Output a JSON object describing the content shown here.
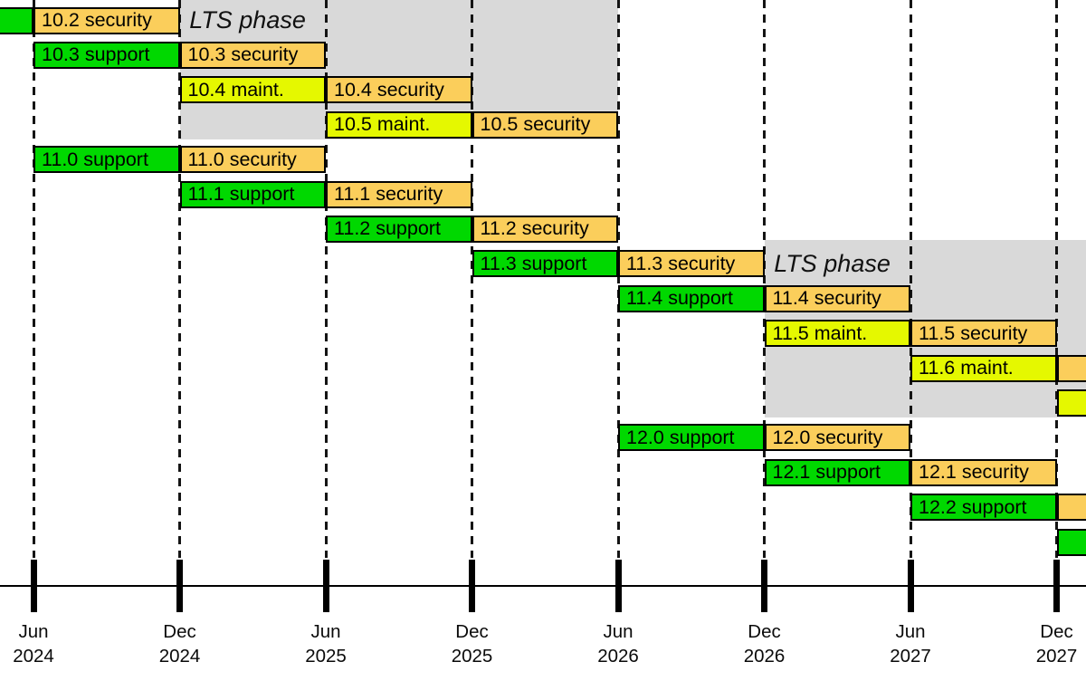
{
  "chart_data": {
    "type": "gantt",
    "title": "",
    "description": "Software release lifecycle timeline showing support, maintenance and security phases per minor version, with shaded LTS phase regions",
    "grid": "dashed vertical lines at each half-year",
    "legend_position": "none visible",
    "time_axis": {
      "unit": "months after Jun 2024",
      "range": [
        0,
        42
      ],
      "ticks": [
        {
          "t": 0,
          "month": "Jun",
          "year": "2024"
        },
        {
          "t": 6,
          "month": "Dec",
          "year": "2024"
        },
        {
          "t": 12,
          "month": "Jun",
          "year": "2025"
        },
        {
          "t": 18,
          "month": "Dec",
          "year": "2025"
        },
        {
          "t": 24,
          "month": "Jun",
          "year": "2026"
        },
        {
          "t": 30,
          "month": "Dec",
          "year": "2026"
        },
        {
          "t": 36,
          "month": "Jun",
          "year": "2027"
        },
        {
          "t": 42,
          "month": "Dec",
          "year": "2027"
        }
      ]
    },
    "colors": {
      "support": "#00d800",
      "maintenance": "#e5f800",
      "security": "#fbce5b",
      "lts_background": "#d9d9d9",
      "bar_border": "#000000",
      "text": "#000000"
    },
    "lts_regions": [
      {
        "label": "LTS phase",
        "t0": 6,
        "t1": 24,
        "row_first": 1,
        "row_last": 4,
        "label_t": 6.4,
        "label_row": 1
      },
      {
        "label": "LTS phase",
        "t0": 30,
        "t1": 44.6,
        "row_first": 8,
        "row_last": 12,
        "label_t": 30.4,
        "label_row": 8
      }
    ],
    "bars": [
      {
        "row": 1,
        "t0": -2,
        "t1": 0,
        "phase": "support",
        "label": ""
      },
      {
        "row": 1,
        "t0": 0,
        "t1": 6,
        "phase": "security",
        "label": "10.2 security"
      },
      {
        "row": 2,
        "t0": 0,
        "t1": 6,
        "phase": "support",
        "label": "10.3 support"
      },
      {
        "row": 2,
        "t0": 6,
        "t1": 12,
        "phase": "security",
        "label": "10.3 security"
      },
      {
        "row": 3,
        "t0": 6,
        "t1": 12,
        "phase": "maintenance",
        "label": "10.4 maint."
      },
      {
        "row": 3,
        "t0": 12,
        "t1": 18,
        "phase": "security",
        "label": "10.4 security"
      },
      {
        "row": 4,
        "t0": 12,
        "t1": 18,
        "phase": "maintenance",
        "label": "10.5 maint."
      },
      {
        "row": 4,
        "t0": 18,
        "t1": 24,
        "phase": "security",
        "label": "10.5 security"
      },
      {
        "row": 5,
        "t0": 0,
        "t1": 6,
        "phase": "support",
        "label": "11.0 support"
      },
      {
        "row": 5,
        "t0": 6,
        "t1": 12,
        "phase": "security",
        "label": "11.0 security"
      },
      {
        "row": 6,
        "t0": 6,
        "t1": 12,
        "phase": "support",
        "label": "11.1 support"
      },
      {
        "row": 6,
        "t0": 12,
        "t1": 18,
        "phase": "security",
        "label": "11.1 security"
      },
      {
        "row": 7,
        "t0": 12,
        "t1": 18,
        "phase": "support",
        "label": "11.2 support"
      },
      {
        "row": 7,
        "t0": 18,
        "t1": 24,
        "phase": "security",
        "label": "11.2 security"
      },
      {
        "row": 8,
        "t0": 18,
        "t1": 24,
        "phase": "support",
        "label": "11.3 support"
      },
      {
        "row": 8,
        "t0": 24,
        "t1": 30,
        "phase": "security",
        "label": "11.3 security"
      },
      {
        "row": 9,
        "t0": 24,
        "t1": 30,
        "phase": "support",
        "label": "11.4 support"
      },
      {
        "row": 9,
        "t0": 30,
        "t1": 36,
        "phase": "security",
        "label": "11.4 security"
      },
      {
        "row": 10,
        "t0": 30,
        "t1": 36,
        "phase": "maintenance",
        "label": "11.5 maint."
      },
      {
        "row": 10,
        "t0": 36,
        "t1": 42,
        "phase": "security",
        "label": "11.5 security"
      },
      {
        "row": 11,
        "t0": 36,
        "t1": 42,
        "phase": "maintenance",
        "label": "11.6 maint."
      },
      {
        "row": 11,
        "t0": 42,
        "t1": 44.5,
        "phase": "security",
        "label": ""
      },
      {
        "row": 12,
        "t0": 42,
        "t1": 44.5,
        "phase": "maintenance",
        "label": ""
      },
      {
        "row": 13,
        "t0": 24,
        "t1": 30,
        "phase": "support",
        "label": "12.0 support"
      },
      {
        "row": 13,
        "t0": 30,
        "t1": 36,
        "phase": "security",
        "label": "12.0 security"
      },
      {
        "row": 14,
        "t0": 30,
        "t1": 36,
        "phase": "support",
        "label": "12.1 support"
      },
      {
        "row": 14,
        "t0": 36,
        "t1": 42,
        "phase": "security",
        "label": "12.1 security"
      },
      {
        "row": 15,
        "t0": 36,
        "t1": 42,
        "phase": "support",
        "label": "12.2 support"
      },
      {
        "row": 15,
        "t0": 42,
        "t1": 44.5,
        "phase": "security",
        "label": ""
      },
      {
        "row": 16,
        "t0": 42,
        "t1": 44.5,
        "phase": "support",
        "label": ""
      }
    ]
  }
}
